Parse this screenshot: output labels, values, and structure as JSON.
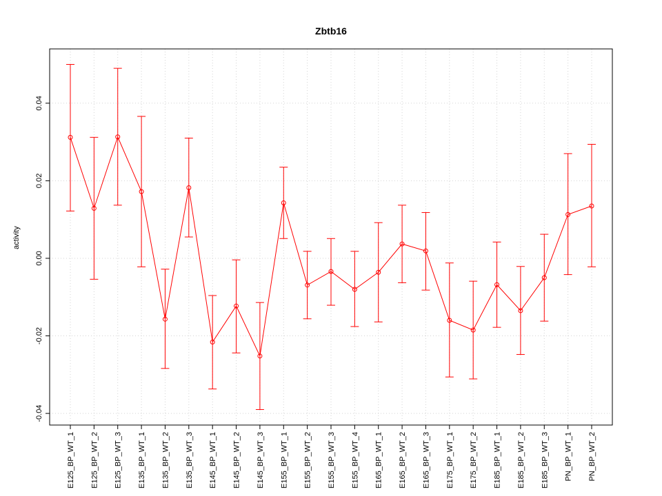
{
  "chart_data": {
    "type": "line",
    "title": "Zbtb16",
    "xlabel": "",
    "ylabel": "activity",
    "ylim": [
      -0.043,
      0.054
    ],
    "y_ticks": [
      -0.04,
      -0.02,
      0.0,
      0.02,
      0.04
    ],
    "y_tick_labels": [
      "-0.04",
      "-0.02",
      "0.00",
      "0.02",
      "0.04"
    ],
    "grid": true,
    "color": "#ff0000",
    "categories": [
      "E125_BP_WT_1",
      "E125_BP_WT_2",
      "E125_BP_WT_3",
      "E135_BP_WT_1",
      "E135_BP_WT_2",
      "E135_BP_WT_3",
      "E145_BP_WT_1",
      "E145_BP_WT_2",
      "E145_BP_WT_3",
      "E155_BP_WT_1",
      "E155_BP_WT_2",
      "E155_BP_WT_3",
      "E155_BP_WT_4",
      "E165_BP_WT_1",
      "E165_BP_WT_2",
      "E165_BP_WT_3",
      "E175_BP_WT_1",
      "E175_BP_WT_2",
      "E185_BP_WT_1",
      "E185_BP_WT_2",
      "E185_BP_WT_3",
      "PN_BP_WT_1",
      "PN_BP_WT_2"
    ],
    "series": [
      {
        "values": [
          0.0312,
          0.0129,
          0.0313,
          0.0172,
          -0.0157,
          0.0182,
          -0.0216,
          -0.0123,
          -0.0252,
          0.0143,
          -0.0069,
          -0.0034,
          -0.008,
          -0.0036,
          0.0037,
          0.0019,
          -0.016,
          -0.0185,
          -0.0068,
          -0.0135,
          -0.005,
          0.0113,
          0.0135
        ],
        "upper": [
          0.05,
          0.0312,
          0.049,
          0.0366,
          -0.0028,
          0.031,
          -0.0096,
          -0.0004,
          -0.0114,
          0.0235,
          0.0018,
          0.0051,
          0.0018,
          0.0092,
          0.0137,
          0.0118,
          -0.0012,
          -0.0059,
          0.0042,
          -0.0021,
          0.0062,
          0.027,
          0.0294
        ],
        "lower": [
          0.0122,
          -0.0054,
          0.0137,
          -0.0022,
          -0.0284,
          0.0055,
          -0.0337,
          -0.0244,
          -0.039,
          0.0051,
          -0.0156,
          -0.0121,
          -0.0176,
          -0.0164,
          -0.0063,
          -0.0082,
          -0.0306,
          -0.0311,
          -0.0178,
          -0.0248,
          -0.0162,
          -0.0042,
          -0.0022
        ]
      }
    ]
  }
}
